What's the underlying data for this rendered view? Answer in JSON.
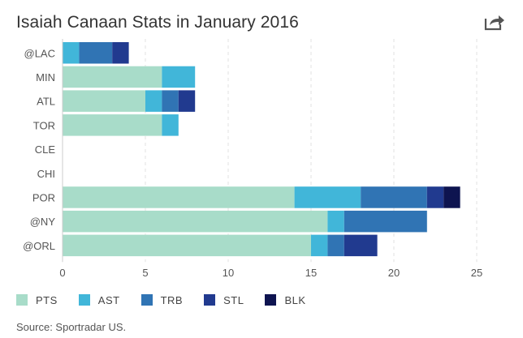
{
  "header": {
    "title": "Isaiah Canaan Stats in January 2016",
    "share_icon": "share-icon"
  },
  "source": "Source: Sportradar US.",
  "chart_data": {
    "type": "bar",
    "orientation": "horizontal",
    "stacked": true,
    "title": "Isaiah Canaan Stats in January 2016",
    "categories": [
      "@LAC",
      "MIN",
      "ATL",
      "TOR",
      "CLE",
      "CHI",
      "POR",
      "@NY",
      "@ORL"
    ],
    "series": [
      {
        "name": "PTS",
        "color": "#a8dcc9",
        "values": [
          0,
          6,
          5,
          6,
          0,
          0,
          14,
          16,
          15
        ]
      },
      {
        "name": "AST",
        "color": "#41b6d9",
        "values": [
          1,
          2,
          1,
          1,
          0,
          0,
          4,
          1,
          1
        ]
      },
      {
        "name": "TRB",
        "color": "#3074b4",
        "values": [
          2,
          0,
          1,
          0,
          0,
          0,
          4,
          5,
          1
        ]
      },
      {
        "name": "STL",
        "color": "#213a8f",
        "values": [
          1,
          0,
          1,
          0,
          0,
          0,
          1,
          0,
          2
        ]
      },
      {
        "name": "BLK",
        "color": "#0e1450",
        "values": [
          0,
          0,
          0,
          0,
          0,
          0,
          1,
          0,
          0
        ]
      }
    ],
    "xlim": [
      0,
      25
    ],
    "xticks": [
      0,
      5,
      10,
      15,
      20,
      25
    ],
    "grid": true,
    "legend_position": "bottom-left",
    "xlabel": "",
    "ylabel": ""
  }
}
